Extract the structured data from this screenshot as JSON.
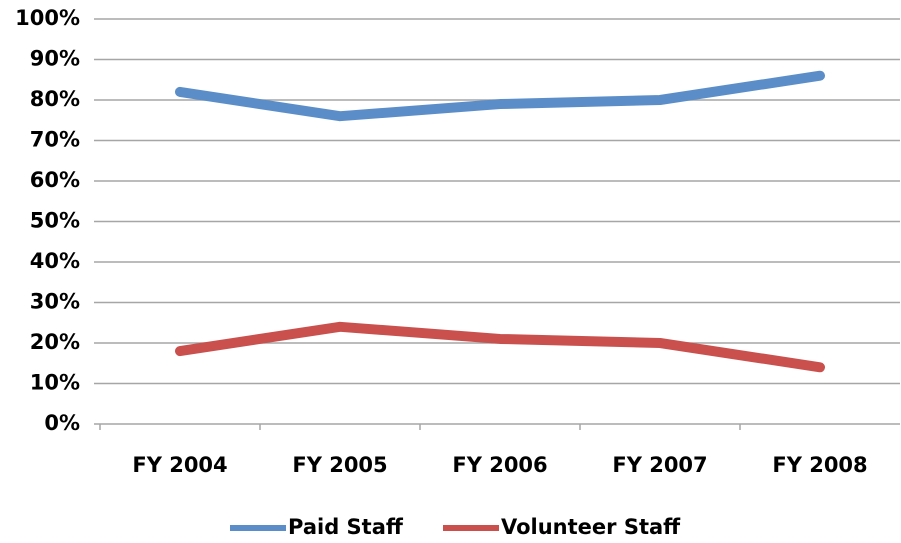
{
  "chart_data": {
    "type": "line",
    "categories": [
      "FY 2004",
      "FY 2005",
      "FY 2006",
      "FY 2007",
      "FY 2008"
    ],
    "series": [
      {
        "name": "Paid Staff",
        "color": "#5b8ec9",
        "values": [
          82,
          76,
          79,
          80,
          86
        ]
      },
      {
        "name": "Volunteer Staff",
        "color": "#c9504d",
        "values": [
          18,
          24,
          21,
          20,
          14
        ]
      }
    ],
    "ylim": [
      0,
      100
    ],
    "yticks": [
      {
        "value": 0,
        "label": "0%"
      },
      {
        "value": 10,
        "label": "10%"
      },
      {
        "value": 20,
        "label": "20%"
      },
      {
        "value": 30,
        "label": "30%"
      },
      {
        "value": 40,
        "label": "40%"
      },
      {
        "value": 50,
        "label": "50%"
      },
      {
        "value": 60,
        "label": "60%"
      },
      {
        "value": 70,
        "label": "70%"
      },
      {
        "value": 80,
        "label": "80%"
      },
      {
        "value": 90,
        "label": "90%"
      },
      {
        "value": 100,
        "label": "100%"
      }
    ],
    "grid": true,
    "legend": "bottom"
  }
}
